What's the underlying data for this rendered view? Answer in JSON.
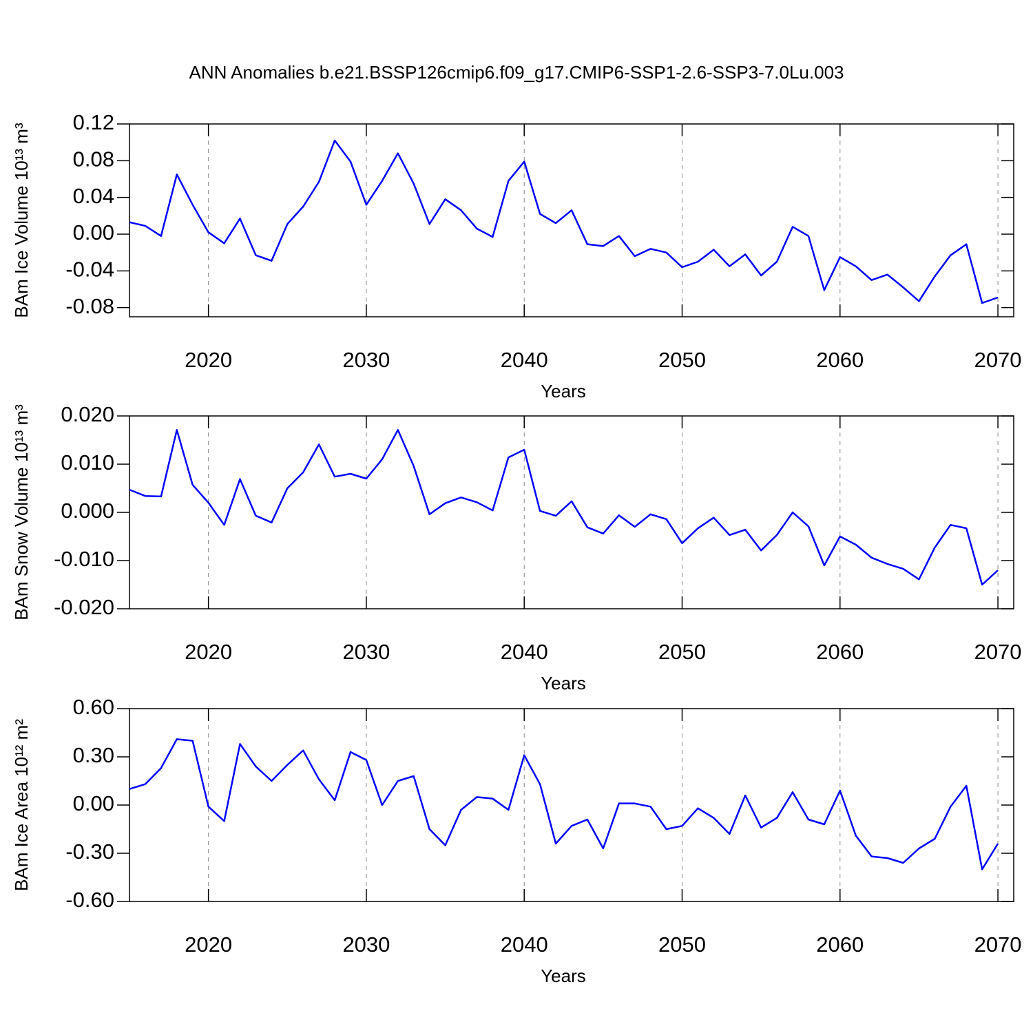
{
  "title": "ANN Anomalies b.e21.BSSP126cmip6.f09_g17.CMIP6-SSP1-2.6-SSP3-7.0Lu.003",
  "chart_data": [
    {
      "type": "line",
      "xlabel": "Years",
      "ylabel": "BAm Ice Volume 10¹³ m³",
      "x": [
        2015,
        2016,
        2017,
        2018,
        2019,
        2020,
        2021,
        2022,
        2023,
        2024,
        2025,
        2026,
        2027,
        2028,
        2029,
        2030,
        2031,
        2032,
        2033,
        2034,
        2035,
        2036,
        2037,
        2038,
        2039,
        2040,
        2041,
        2042,
        2043,
        2044,
        2045,
        2046,
        2047,
        2048,
        2049,
        2050,
        2051,
        2052,
        2053,
        2054,
        2055,
        2056,
        2057,
        2058,
        2059,
        2060,
        2061,
        2062,
        2063,
        2064,
        2065,
        2066,
        2067,
        2068,
        2069,
        2070
      ],
      "series": [
        {
          "color": "#0000ff",
          "values": [
            0.013,
            0.009,
            -0.002,
            0.065,
            0.032,
            0.002,
            -0.01,
            0.017,
            -0.023,
            -0.029,
            0.011,
            0.03,
            0.057,
            0.102,
            0.079,
            0.032,
            0.058,
            0.088,
            0.055,
            0.011,
            0.038,
            0.026,
            0.006,
            -0.003,
            0.058,
            0.079,
            0.022,
            0.012,
            0.026,
            -0.011,
            -0.013,
            -0.002,
            -0.024,
            -0.016,
            -0.02,
            -0.036,
            -0.03,
            -0.017,
            -0.035,
            -0.022,
            -0.045,
            -0.03,
            0.008,
            -0.002,
            -0.061,
            -0.025,
            -0.035,
            -0.05,
            -0.044,
            -0.058,
            -0.073,
            -0.046,
            -0.023,
            -0.011,
            -0.075,
            -0.069
          ]
        }
      ],
      "xlim": [
        2015,
        2071
      ],
      "xticks": [
        2020,
        2030,
        2040,
        2050,
        2060,
        2070
      ],
      "ylim": [
        -0.09,
        0.12
      ],
      "yticks": [
        0.12,
        0.08,
        0.04,
        {
          "value": 0,
          "label": "0.00"
        },
        -0.04,
        -0.08
      ],
      "grid": true
    },
    {
      "type": "line",
      "xlabel": "Years",
      "ylabel": "BAm Snow Volume 10¹³ m³",
      "x": [
        2015,
        2016,
        2017,
        2018,
        2019,
        2020,
        2021,
        2022,
        2023,
        2024,
        2025,
        2026,
        2027,
        2028,
        2029,
        2030,
        2031,
        2032,
        2033,
        2034,
        2035,
        2036,
        2037,
        2038,
        2039,
        2040,
        2041,
        2042,
        2043,
        2044,
        2045,
        2046,
        2047,
        2048,
        2049,
        2050,
        2051,
        2052,
        2053,
        2054,
        2055,
        2056,
        2057,
        2058,
        2059,
        2060,
        2061,
        2062,
        2063,
        2064,
        2065,
        2066,
        2067,
        2068,
        2069,
        2070
      ],
      "series": [
        {
          "color": "#0000ff",
          "values": [
            0.0047,
            0.0034,
            0.0033,
            0.0171,
            0.0057,
            0.002,
            -0.0026,
            0.0069,
            -0.0007,
            -0.0021,
            0.005,
            0.0083,
            0.0141,
            0.0074,
            0.008,
            0.007,
            0.011,
            0.0171,
            0.0096,
            -0.0004,
            0.0019,
            0.0031,
            0.0021,
            0.0004,
            0.0114,
            0.013,
            0.0003,
            -0.0007,
            0.0023,
            -0.0031,
            -0.0044,
            -0.0006,
            -0.003,
            -0.0004,
            -0.0014,
            -0.0064,
            -0.0033,
            -0.0011,
            -0.0047,
            -0.0036,
            -0.0079,
            -0.0047,
            0.0,
            -0.0029,
            -0.011,
            -0.005,
            -0.0067,
            -0.0094,
            -0.0107,
            -0.0117,
            -0.0139,
            -0.0073,
            -0.0026,
            -0.0033,
            -0.015,
            -0.012
          ]
        }
      ],
      "xlim": [
        2015,
        2071
      ],
      "xticks": [
        2020,
        2030,
        2040,
        2050,
        2060,
        2070
      ],
      "ylim": [
        -0.02,
        0.02
      ],
      "yticks": [
        {
          "value": 0.02,
          "label": "0.020"
        },
        {
          "value": 0.01,
          "label": "0.010"
        },
        {
          "value": 0,
          "label": "0.000"
        },
        {
          "value": -0.01,
          "label": "-0.010"
        },
        {
          "value": -0.02,
          "label": "-0.020"
        }
      ],
      "grid": true
    },
    {
      "type": "line",
      "xlabel": "Years",
      "ylabel": "BAm Ice Area 10¹² m²",
      "x": [
        2015,
        2016,
        2017,
        2018,
        2019,
        2020,
        2021,
        2022,
        2023,
        2024,
        2025,
        2026,
        2027,
        2028,
        2029,
        2030,
        2031,
        2032,
        2033,
        2034,
        2035,
        2036,
        2037,
        2038,
        2039,
        2040,
        2041,
        2042,
        2043,
        2044,
        2045,
        2046,
        2047,
        2048,
        2049,
        2050,
        2051,
        2052,
        2053,
        2054,
        2055,
        2056,
        2057,
        2058,
        2059,
        2060,
        2061,
        2062,
        2063,
        2064,
        2065,
        2066,
        2067,
        2068,
        2069,
        2070
      ],
      "series": [
        {
          "color": "#0000ff",
          "values": [
            0.1,
            0.13,
            0.23,
            0.41,
            0.4,
            -0.01,
            -0.1,
            0.38,
            0.24,
            0.15,
            0.25,
            0.34,
            0.16,
            0.03,
            0.33,
            0.28,
            0.0,
            0.15,
            0.18,
            -0.15,
            -0.25,
            -0.03,
            0.05,
            0.04,
            -0.03,
            0.31,
            0.13,
            -0.24,
            -0.13,
            -0.09,
            -0.27,
            0.01,
            0.01,
            -0.01,
            -0.15,
            -0.13,
            -0.02,
            -0.08,
            -0.18,
            0.06,
            -0.14,
            -0.08,
            0.08,
            -0.09,
            -0.12,
            0.09,
            -0.19,
            -0.32,
            -0.33,
            -0.36,
            -0.27,
            -0.21,
            -0.01,
            0.12,
            -0.4,
            -0.24
          ]
        }
      ],
      "xlim": [
        2015,
        2071
      ],
      "xticks": [
        2020,
        2030,
        2040,
        2050,
        2060,
        2070
      ],
      "ylim": [
        -0.6,
        0.6
      ],
      "yticks": [
        {
          "value": 0.6,
          "label": "0.60"
        },
        {
          "value": 0.3,
          "label": "0.30"
        },
        {
          "value": 0,
          "label": "0.00"
        },
        {
          "value": -0.3,
          "label": "-0.30"
        },
        {
          "value": -0.6,
          "label": "-0.60"
        }
      ],
      "grid": true
    }
  ]
}
